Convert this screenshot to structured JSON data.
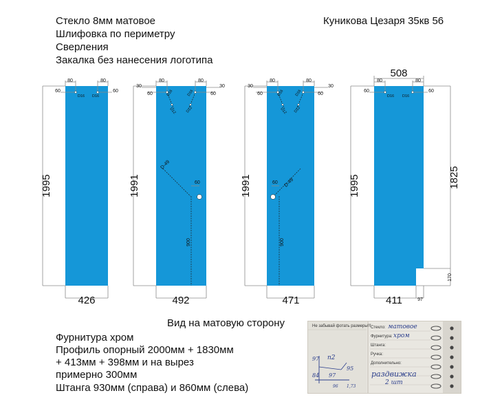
{
  "notes": {
    "left": [
      "Стекло 8мм матовое",
      "Шлифовка по периметру",
      "Сверления",
      "Закалка без нанесения логотипа"
    ],
    "right": "Куникова Цезаря 35кв 56"
  },
  "view_label": "Вид на матовую сторону",
  "hardware": [
    "Фурнитура хром",
    "Профиль опорный 2000мм + 1830мм",
    "+ 413мм + 398мм и на вырез",
    "примерно 300мм",
    "Штанга 930мм (справа) и 860мм (слева)"
  ],
  "colors": {
    "glass": "#1597d8",
    "dim": "#8a8a8a",
    "text": "#111111"
  },
  "panels": [
    {
      "width_label": "426",
      "height_label": "1995",
      "top_dims": [
        "80",
        "80"
      ],
      "side_dims": [
        "60",
        "60"
      ],
      "holes": [
        "D16",
        "D16"
      ]
    },
    {
      "width_label": "492",
      "height_label": "1991",
      "top_dims": [
        "30",
        "80",
        "80",
        "30"
      ],
      "side_dims": [
        "60",
        "60"
      ],
      "holes": [
        "D16",
        "D16",
        "D12",
        "D12"
      ],
      "handle_hole": "D-49",
      "handle_offset": "60",
      "handle_height": "900"
    },
    {
      "width_label": "471",
      "height_label": "1991",
      "top_dims": [
        "30",
        "80",
        "80",
        "30"
      ],
      "side_dims": [
        "60",
        "60"
      ],
      "holes": [
        "D16",
        "D16",
        "D12",
        "D12"
      ],
      "handle_hole": "D-49",
      "handle_offset": "60",
      "handle_height": "900"
    },
    {
      "width_label": "411",
      "top_label": "508",
      "height_label": "1995",
      "right_label": "1825",
      "top_dims": [
        "80",
        "80"
      ],
      "side_dims": [
        "60",
        "60"
      ],
      "holes": [
        "D16",
        "D16"
      ],
      "cut_height": "170",
      "cut_width": "97"
    }
  ],
  "photo": {
    "title": "Не забывай фотать размеры!!!",
    "rows": [
      "Стекло:",
      "Фурнитура:",
      "Штанга:",
      "Ручка:",
      "Дополнительно:"
    ],
    "values": [
      "матовое",
      "хром",
      "",
      "",
      "раздвижка"
    ],
    "extra": "2 шт",
    "sketch": [
      "97",
      "n2",
      "95",
      "84",
      "97",
      "96",
      "1,73"
    ]
  }
}
